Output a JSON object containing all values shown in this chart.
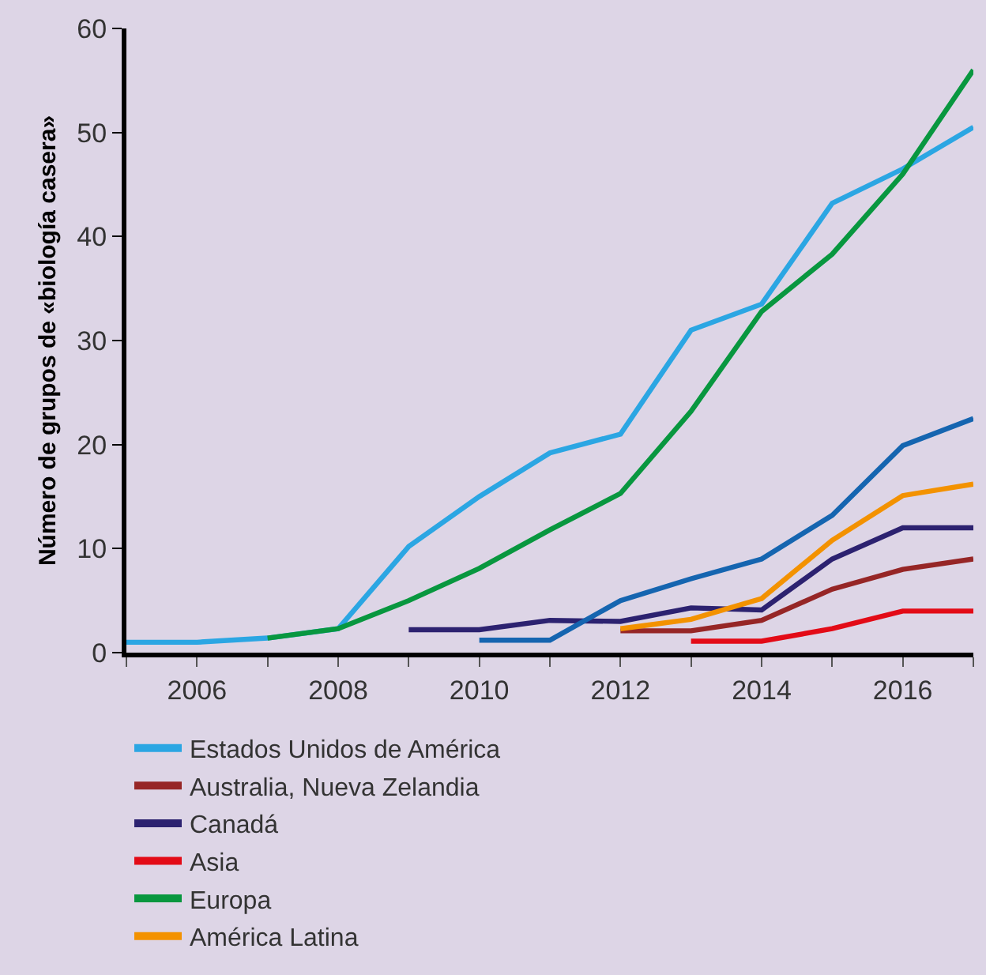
{
  "chart_data": {
    "type": "line",
    "ylabel": "Número de grupos de «biología casera»",
    "xlim": [
      2005,
      2017
    ],
    "ylim": [
      0,
      60
    ],
    "xticks": [
      {
        "value": 2005,
        "label": null
      },
      2006,
      {
        "value": 2007,
        "label": null
      },
      2008,
      {
        "value": 2009,
        "label": null
      },
      2010,
      {
        "value": 2011,
        "label": null
      },
      2012,
      {
        "value": 2013,
        "label": null
      },
      2014,
      {
        "value": 2015,
        "label": null
      },
      2016,
      {
        "value": 2017,
        "label": null
      }
    ],
    "yticks": [
      0,
      10,
      20,
      30,
      40,
      50,
      60
    ],
    "grid": false,
    "legend": "bottom",
    "marker": "none",
    "line_style": "solid",
    "series": [
      {
        "name": "Estados Unidos de América",
        "color": "#2ba6e3",
        "x": [
          2005,
          2006,
          2007,
          2008,
          2009,
          2010,
          2011,
          2012,
          2013,
          2014,
          2015,
          2016,
          2017
        ],
        "values": [
          1,
          1,
          1.4,
          2.3,
          10.2,
          15,
          19.2,
          21,
          31,
          33.5,
          43.2,
          46.5,
          50.5
        ]
      },
      {
        "name": "Canadá",
        "color": "#2c2270",
        "x": [
          2009,
          2010,
          2011,
          2012,
          2013,
          2014,
          2015,
          2016,
          2017
        ],
        "values": [
          2.2,
          2.2,
          3.1,
          3,
          4.3,
          4.1,
          9,
          12,
          12
        ]
      },
      {
        "name": "Europa",
        "color": "#08973f",
        "x": [
          2007,
          2008,
          2009,
          2010,
          2011,
          2012,
          2013,
          2014,
          2015,
          2016,
          2017
        ],
        "values": [
          1.4,
          2.3,
          5,
          8.1,
          11.8,
          15.3,
          23.2,
          32.8,
          38.3,
          46,
          56
        ]
      },
      {
        "name": "Australia, Nueva Zelandia",
        "color": "#962626",
        "x": [
          2012,
          2013,
          2014,
          2015,
          2016,
          2017
        ],
        "values": [
          2.1,
          2.1,
          3.1,
          6.1,
          8,
          9
        ]
      },
      {
        "name": "Asia",
        "color": "#e30b17",
        "x": [
          2013,
          2014,
          2015,
          2016,
          2017
        ],
        "values": [
          1.1,
          1.1,
          2.3,
          4,
          4
        ]
      },
      {
        "name": "América Latina",
        "color": "#f39200",
        "x": [
          2012,
          2013,
          2014,
          2015,
          2016,
          2017
        ],
        "values": [
          2.3,
          3.2,
          5.2,
          10.8,
          15.1,
          16.2
        ]
      },
      {
        "color": "#1565b0",
        "x": [
          2010,
          2011,
          2012,
          2013,
          2014,
          2015,
          2016,
          2017
        ],
        "values": [
          1.2,
          1.2,
          5,
          7.1,
          9,
          13.2,
          19.9,
          22.5
        ]
      }
    ]
  }
}
